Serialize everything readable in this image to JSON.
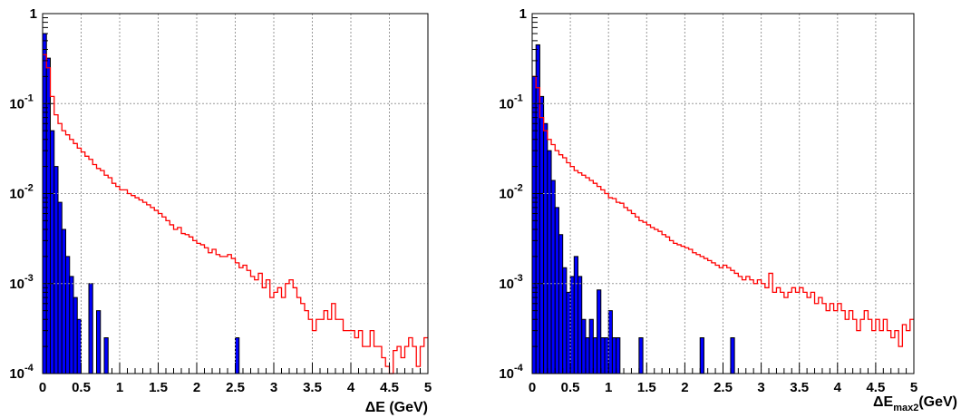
{
  "chart_data": [
    {
      "type": "bar",
      "log_y": true,
      "ylim": [
        0.0001,
        1
      ],
      "xlim": [
        0,
        5
      ],
      "grid": true,
      "xlabel": "ΔE (GeV)",
      "xlabel_main": "ΔE (GeV)",
      "xlabel_sub": "",
      "xlabel_tail": "",
      "x_ticks": [
        "0",
        "0.5",
        "1",
        "1.5",
        "2",
        "2.5",
        "3",
        "3.5",
        "4",
        "4.5",
        "5"
      ],
      "y_ticks": [
        {
          "base": "1",
          "exp": ""
        },
        {
          "base": "10",
          "exp": "-1"
        },
        {
          "base": "10",
          "exp": "-2"
        },
        {
          "base": "10",
          "exp": "-3"
        },
        {
          "base": "10",
          "exp": "-4"
        }
      ],
      "colors": {
        "filled": "#0000ff",
        "line": "#ff0000",
        "grid": "#999999"
      },
      "bin_width": 0.05,
      "series": [
        {
          "style": "filled",
          "bins": [
            [
              0.0,
              0.6
            ],
            [
              0.05,
              0.32
            ],
            [
              0.1,
              0.05
            ],
            [
              0.15,
              0.02
            ],
            [
              0.2,
              0.008
            ],
            [
              0.25,
              0.004
            ],
            [
              0.3,
              0.002
            ],
            [
              0.35,
              0.0012
            ],
            [
              0.4,
              0.0007
            ],
            [
              0.45,
              0.0004
            ],
            [
              0.6,
              0.001
            ],
            [
              0.7,
              0.0005
            ],
            [
              0.8,
              0.00025
            ],
            [
              2.5,
              0.00025
            ]
          ]
        },
        {
          "style": "line",
          "bins": [
            [
              0.0,
              0.35
            ],
            [
              0.05,
              0.25
            ],
            [
              0.1,
              0.12
            ],
            [
              0.15,
              0.075
            ],
            [
              0.2,
              0.06
            ],
            [
              0.25,
              0.05
            ],
            [
              0.3,
              0.045
            ],
            [
              0.35,
              0.04
            ],
            [
              0.4,
              0.036
            ],
            [
              0.45,
              0.032
            ],
            [
              0.5,
              0.029
            ],
            [
              0.55,
              0.026
            ],
            [
              0.6,
              0.024
            ],
            [
              0.65,
              0.021
            ],
            [
              0.7,
              0.019
            ],
            [
              0.75,
              0.018
            ],
            [
              0.8,
              0.016
            ],
            [
              0.85,
              0.015
            ],
            [
              0.9,
              0.013
            ],
            [
              0.95,
              0.012
            ],
            [
              1.0,
              0.011
            ],
            [
              1.05,
              0.011
            ],
            [
              1.1,
              0.01
            ],
            [
              1.15,
              0.0095
            ],
            [
              1.2,
              0.009
            ],
            [
              1.25,
              0.0085
            ],
            [
              1.3,
              0.008
            ],
            [
              1.35,
              0.0075
            ],
            [
              1.4,
              0.007
            ],
            [
              1.45,
              0.0065
            ],
            [
              1.5,
              0.006
            ],
            [
              1.55,
              0.0055
            ],
            [
              1.6,
              0.005
            ],
            [
              1.65,
              0.0045
            ],
            [
              1.7,
              0.004
            ],
            [
              1.75,
              0.0042
            ],
            [
              1.8,
              0.0036
            ],
            [
              1.85,
              0.0035
            ],
            [
              1.9,
              0.0033
            ],
            [
              1.95,
              0.003
            ],
            [
              2.0,
              0.0028
            ],
            [
              2.05,
              0.0027
            ],
            [
              2.1,
              0.0025
            ],
            [
              2.15,
              0.0022
            ],
            [
              2.2,
              0.0024
            ],
            [
              2.25,
              0.0021
            ],
            [
              2.3,
              0.002
            ],
            [
              2.35,
              0.002
            ],
            [
              2.4,
              0.0021
            ],
            [
              2.45,
              0.0019
            ],
            [
              2.5,
              0.0017
            ],
            [
              2.55,
              0.0015
            ],
            [
              2.6,
              0.0016
            ],
            [
              2.65,
              0.0014
            ],
            [
              2.7,
              0.0012
            ],
            [
              2.75,
              0.0011
            ],
            [
              2.8,
              0.0013
            ],
            [
              2.85,
              0.0009
            ],
            [
              2.9,
              0.0011
            ],
            [
              2.95,
              0.0007
            ],
            [
              3.0,
              0.0008
            ],
            [
              3.05,
              0.0009
            ],
            [
              3.1,
              0.0007
            ],
            [
              3.15,
              0.001
            ],
            [
              3.2,
              0.0011
            ],
            [
              3.25,
              0.0009
            ],
            [
              3.3,
              0.0007
            ],
            [
              3.35,
              0.0006
            ],
            [
              3.4,
              0.0005
            ],
            [
              3.45,
              0.0004
            ],
            [
              3.5,
              0.0003
            ],
            [
              3.55,
              0.0004
            ],
            [
              3.6,
              0.0004
            ],
            [
              3.65,
              0.0005
            ],
            [
              3.7,
              0.0004
            ],
            [
              3.75,
              0.0006
            ],
            [
              3.8,
              0.0004
            ],
            [
              3.85,
              0.0004
            ],
            [
              3.9,
              0.0003
            ],
            [
              3.95,
              0.0003
            ],
            [
              4.0,
              0.0003
            ],
            [
              4.05,
              0.00025
            ],
            [
              4.1,
              0.0003
            ],
            [
              4.15,
              0.0002
            ],
            [
              4.2,
              0.0002
            ],
            [
              4.25,
              0.0003
            ],
            [
              4.3,
              0.0002
            ],
            [
              4.35,
              0.0002
            ],
            [
              4.4,
              0.00015
            ],
            [
              4.45,
              0.00012
            ],
            [
              4.5,
              0.0001
            ],
            [
              4.55,
              0.00018
            ],
            [
              4.6,
              0.0002
            ],
            [
              4.65,
              0.00015
            ],
            [
              4.7,
              0.0002
            ],
            [
              4.75,
              0.00025
            ],
            [
              4.8,
              0.0002
            ],
            [
              4.85,
              0.00012
            ],
            [
              4.9,
              0.0002
            ],
            [
              4.95,
              0.00025
            ]
          ]
        }
      ]
    },
    {
      "type": "bar",
      "log_y": true,
      "ylim": [
        0.0001,
        1
      ],
      "xlim": [
        0,
        5
      ],
      "grid": true,
      "xlabel": "ΔE_max2(GeV)",
      "xlabel_main": "ΔE",
      "xlabel_sub": "max2",
      "xlabel_tail": "(GeV)",
      "x_ticks": [
        "0",
        "0.5",
        "1",
        "1.5",
        "2",
        "2.5",
        "3",
        "3.5",
        "4",
        "4.5",
        "5"
      ],
      "y_ticks": [
        {
          "base": "1",
          "exp": ""
        },
        {
          "base": "10",
          "exp": "-1"
        },
        {
          "base": "10",
          "exp": "-2"
        },
        {
          "base": "10",
          "exp": "-3"
        },
        {
          "base": "10",
          "exp": "-4"
        }
      ],
      "colors": {
        "filled": "#0000ff",
        "line": "#ff0000",
        "grid": "#999999"
      },
      "bin_width": 0.05,
      "series": [
        {
          "style": "filled",
          "bins": [
            [
              0.0,
              0.2
            ],
            [
              0.05,
              0.45
            ],
            [
              0.1,
              0.12
            ],
            [
              0.15,
              0.06
            ],
            [
              0.2,
              0.03
            ],
            [
              0.25,
              0.014
            ],
            [
              0.3,
              0.007
            ],
            [
              0.35,
              0.0035
            ],
            [
              0.4,
              0.0015
            ],
            [
              0.45,
              0.0008
            ],
            [
              0.5,
              0.0012
            ],
            [
              0.55,
              0.002
            ],
            [
              0.6,
              0.0012
            ],
            [
              0.65,
              0.0004
            ],
            [
              0.7,
              0.00025
            ],
            [
              0.75,
              0.0004
            ],
            [
              0.8,
              0.00025
            ],
            [
              0.85,
              0.00085
            ],
            [
              0.9,
              0.00025
            ],
            [
              0.95,
              0.00025
            ],
            [
              1.0,
              0.0005
            ],
            [
              1.05,
              0.00025
            ],
            [
              1.1,
              0.00025
            ],
            [
              1.4,
              0.00025
            ],
            [
              2.2,
              0.00025
            ],
            [
              2.6,
              0.00025
            ]
          ]
        },
        {
          "style": "line",
          "bins": [
            [
              0.0,
              0.2
            ],
            [
              0.05,
              0.15
            ],
            [
              0.1,
              0.07
            ],
            [
              0.15,
              0.05
            ],
            [
              0.2,
              0.04
            ],
            [
              0.25,
              0.035
            ],
            [
              0.3,
              0.03
            ],
            [
              0.35,
              0.027
            ],
            [
              0.4,
              0.025
            ],
            [
              0.45,
              0.022
            ],
            [
              0.5,
              0.02
            ],
            [
              0.55,
              0.018
            ],
            [
              0.6,
              0.017
            ],
            [
              0.65,
              0.016
            ],
            [
              0.7,
              0.015
            ],
            [
              0.75,
              0.014
            ],
            [
              0.8,
              0.013
            ],
            [
              0.85,
              0.012
            ],
            [
              0.9,
              0.011
            ],
            [
              0.95,
              0.01
            ],
            [
              1.0,
              0.009
            ],
            [
              1.05,
              0.0088
            ],
            [
              1.1,
              0.008
            ],
            [
              1.15,
              0.0078
            ],
            [
              1.2,
              0.007
            ],
            [
              1.25,
              0.0065
            ],
            [
              1.3,
              0.006
            ],
            [
              1.35,
              0.0055
            ],
            [
              1.4,
              0.005
            ],
            [
              1.45,
              0.0048
            ],
            [
              1.5,
              0.0045
            ],
            [
              1.55,
              0.0042
            ],
            [
              1.6,
              0.004
            ],
            [
              1.65,
              0.0038
            ],
            [
              1.7,
              0.0035
            ],
            [
              1.75,
              0.0033
            ],
            [
              1.8,
              0.003
            ],
            [
              1.85,
              0.0028
            ],
            [
              1.9,
              0.0027
            ],
            [
              1.95,
              0.0026
            ],
            [
              2.0,
              0.0025
            ],
            [
              2.05,
              0.0024
            ],
            [
              2.1,
              0.0022
            ],
            [
              2.15,
              0.0021
            ],
            [
              2.2,
              0.002
            ],
            [
              2.25,
              0.0019
            ],
            [
              2.3,
              0.0018
            ],
            [
              2.35,
              0.0017
            ],
            [
              2.4,
              0.0016
            ],
            [
              2.45,
              0.0015
            ],
            [
              2.5,
              0.0016
            ],
            [
              2.55,
              0.0015
            ],
            [
              2.6,
              0.0014
            ],
            [
              2.65,
              0.0013
            ],
            [
              2.7,
              0.0012
            ],
            [
              2.75,
              0.0011
            ],
            [
              2.8,
              0.0012
            ],
            [
              2.85,
              0.0011
            ],
            [
              2.9,
              0.001
            ],
            [
              2.95,
              0.0011
            ],
            [
              3.0,
              0.001
            ],
            [
              3.05,
              0.0009
            ],
            [
              3.1,
              0.0013
            ],
            [
              3.15,
              0.0008
            ],
            [
              3.2,
              0.0009
            ],
            [
              3.25,
              0.0008
            ],
            [
              3.3,
              0.0007
            ],
            [
              3.35,
              0.0008
            ],
            [
              3.4,
              0.0009
            ],
            [
              3.45,
              0.0008
            ],
            [
              3.5,
              0.0009
            ],
            [
              3.55,
              0.0008
            ],
            [
              3.6,
              0.0007
            ],
            [
              3.65,
              0.0008
            ],
            [
              3.7,
              0.0006
            ],
            [
              3.75,
              0.0007
            ],
            [
              3.8,
              0.0006
            ],
            [
              3.85,
              0.0005
            ],
            [
              3.9,
              0.0006
            ],
            [
              3.95,
              0.0005
            ],
            [
              4.0,
              0.0006
            ],
            [
              4.05,
              0.0005
            ],
            [
              4.1,
              0.0004
            ],
            [
              4.15,
              0.0005
            ],
            [
              4.2,
              0.0004
            ],
            [
              4.25,
              0.0003
            ],
            [
              4.3,
              0.0004
            ],
            [
              4.35,
              0.0005
            ],
            [
              4.4,
              0.0004
            ],
            [
              4.45,
              0.0003
            ],
            [
              4.5,
              0.0004
            ],
            [
              4.55,
              0.0003
            ],
            [
              4.6,
              0.0004
            ],
            [
              4.65,
              0.0003
            ],
            [
              4.7,
              0.00025
            ],
            [
              4.75,
              0.0003
            ],
            [
              4.8,
              0.0002
            ],
            [
              4.85,
              0.00035
            ],
            [
              4.9,
              0.0003
            ],
            [
              4.95,
              0.0004
            ]
          ]
        }
      ]
    }
  ]
}
